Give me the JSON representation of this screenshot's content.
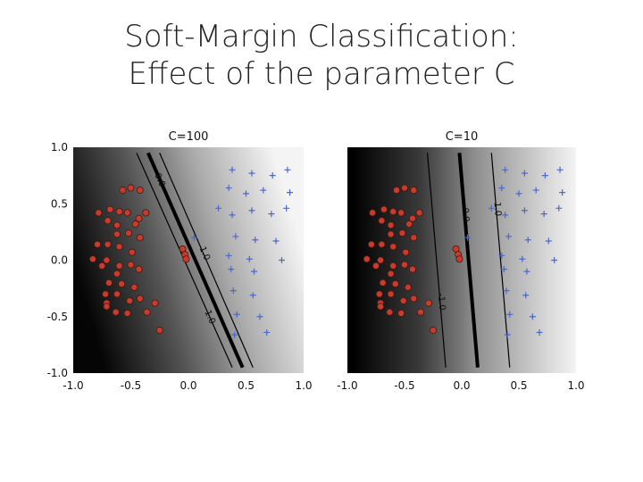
{
  "slide": {
    "title_line1": "Soft-Margin Classification:",
    "title_line2": "Effect of the parameter C"
  },
  "chart_data": [
    {
      "type": "scatter",
      "title": "C=100",
      "xlim": [
        -1.0,
        1.0
      ],
      "ylim": [
        -1.0,
        1.0
      ],
      "xticks": [
        "-1.0",
        "-0.5",
        "0.0",
        "0.5",
        "1.0"
      ],
      "yticks": [
        "1.0",
        "0.5",
        "0.0",
        "-0.5",
        "-1.0"
      ],
      "decision_function_background": "dark-to-light gradient, low values dark (left), high values light (right)",
      "contours": [
        {
          "level": "0.0",
          "points": [
            [
              -0.35,
              0.95
            ],
            [
              0.47,
              -0.95
            ]
          ],
          "weight": "bold"
        },
        {
          "level": "-1.0",
          "label": "-1.0",
          "points": [
            [
              -0.45,
              0.95
            ],
            [
              0.38,
              -0.95
            ]
          ]
        },
        {
          "level": "1.0",
          "label": "1.0",
          "points": [
            [
              -0.25,
              0.95
            ],
            [
              0.56,
              -0.95
            ]
          ]
        }
      ],
      "contour_labels": [
        {
          "text": "0.0",
          "x": -0.27,
          "y": 0.7
        },
        {
          "text": "1.0",
          "x": 0.12,
          "y": 0.05
        },
        {
          "text": "-1.0",
          "x": 0.16,
          "y": -0.5
        }
      ],
      "series": [
        {
          "marker": "circle",
          "color": "#cc3a2c",
          "points": [
            [
              -0.57,
              0.62
            ],
            [
              -0.5,
              0.64
            ],
            [
              -0.42,
              0.62
            ],
            [
              -0.78,
              0.42
            ],
            [
              -0.68,
              0.45
            ],
            [
              -0.6,
              0.43
            ],
            [
              -0.53,
              0.42
            ],
            [
              -0.43,
              0.37
            ],
            [
              -0.7,
              0.35
            ],
            [
              -0.62,
              0.31
            ],
            [
              -0.46,
              0.32
            ],
            [
              -0.37,
              0.42
            ],
            [
              -0.62,
              0.23
            ],
            [
              -0.52,
              0.24
            ],
            [
              -0.42,
              0.2
            ],
            [
              -0.79,
              0.14
            ],
            [
              -0.7,
              0.14
            ],
            [
              -0.6,
              0.12
            ],
            [
              -0.49,
              0.07
            ],
            [
              -0.83,
              0.01
            ],
            [
              -0.71,
              0.0
            ],
            [
              -0.6,
              -0.05
            ],
            [
              -0.5,
              -0.04
            ],
            [
              -0.43,
              -0.08
            ],
            [
              -0.75,
              -0.05
            ],
            [
              -0.62,
              -0.12
            ],
            [
              -0.69,
              -0.2
            ],
            [
              -0.58,
              -0.21
            ],
            [
              -0.47,
              -0.24
            ],
            [
              -0.72,
              -0.3
            ],
            [
              -0.62,
              -0.3
            ],
            [
              -0.51,
              -0.36
            ],
            [
              -0.71,
              -0.38
            ],
            [
              -0.42,
              -0.34
            ],
            [
              -0.29,
              -0.38
            ],
            [
              -0.63,
              -0.46
            ],
            [
              -0.53,
              -0.47
            ],
            [
              -0.36,
              -0.46
            ],
            [
              -0.71,
              -0.41
            ],
            [
              -0.25,
              -0.62
            ],
            [
              -0.05,
              0.1
            ],
            [
              -0.03,
              0.05
            ],
            [
              -0.02,
              0.01
            ]
          ]
        },
        {
          "marker": "plus",
          "color": "#4a68c8",
          "points": [
            [
              0.38,
              0.8
            ],
            [
              0.55,
              0.77
            ],
            [
              0.73,
              0.75
            ],
            [
              0.86,
              0.8
            ],
            [
              0.35,
              0.64
            ],
            [
              0.65,
              0.62
            ],
            [
              0.5,
              0.59
            ],
            [
              0.88,
              0.6
            ],
            [
              0.26,
              0.46
            ],
            [
              0.38,
              0.4
            ],
            [
              0.55,
              0.44
            ],
            [
              0.72,
              0.41
            ],
            [
              0.85,
              0.46
            ],
            [
              0.41,
              0.21
            ],
            [
              0.58,
              0.18
            ],
            [
              0.76,
              0.17
            ],
            [
              0.35,
              0.04
            ],
            [
              0.53,
              0.01
            ],
            [
              0.81,
              0.0
            ],
            [
              0.39,
              -0.27
            ],
            [
              0.56,
              -0.31
            ],
            [
              0.42,
              -0.48
            ],
            [
              0.62,
              -0.5
            ],
            [
              0.68,
              -0.64
            ],
            [
              0.05,
              0.2
            ],
            [
              0.37,
              -0.08
            ],
            [
              0.57,
              -0.1
            ],
            [
              0.4,
              -0.66
            ]
          ]
        }
      ]
    },
    {
      "type": "scatter",
      "title": "C=10",
      "xlim": [
        -1.0,
        1.0
      ],
      "ylim": [
        -1.0,
        1.0
      ],
      "xticks": [
        "-1.0",
        "-0.5",
        "0.0",
        "0.5",
        "1.0"
      ],
      "yticks": [],
      "decision_function_background": "dark-to-light gradient, low values dark (left), high values light (right)",
      "contours": [
        {
          "level": "0.0",
          "points": [
            [
              -0.02,
              0.95
            ],
            [
              0.14,
              -0.95
            ]
          ],
          "weight": "bold"
        },
        {
          "level": "-1.0",
          "label": "-1.0",
          "points": [
            [
              -0.3,
              0.95
            ],
            [
              -0.14,
              -0.95
            ]
          ]
        },
        {
          "level": "1.0",
          "label": "1.0",
          "points": [
            [
              0.26,
              0.95
            ],
            [
              0.42,
              -0.95
            ]
          ]
        }
      ],
      "contour_labels": [
        {
          "text": "0.0",
          "x": 0.01,
          "y": 0.4
        },
        {
          "text": "1.0",
          "x": 0.29,
          "y": 0.45
        },
        {
          "text": "-1.0",
          "x": -0.2,
          "y": -0.37
        }
      ],
      "series": [
        {
          "marker": "circle",
          "color": "#cc3a2c",
          "points": [
            [
              -0.57,
              0.62
            ],
            [
              -0.5,
              0.64
            ],
            [
              -0.42,
              0.62
            ],
            [
              -0.78,
              0.42
            ],
            [
              -0.68,
              0.45
            ],
            [
              -0.6,
              0.43
            ],
            [
              -0.53,
              0.42
            ],
            [
              -0.43,
              0.37
            ],
            [
              -0.7,
              0.35
            ],
            [
              -0.62,
              0.31
            ],
            [
              -0.46,
              0.32
            ],
            [
              -0.37,
              0.42
            ],
            [
              -0.62,
              0.23
            ],
            [
              -0.52,
              0.24
            ],
            [
              -0.42,
              0.2
            ],
            [
              -0.79,
              0.14
            ],
            [
              -0.7,
              0.14
            ],
            [
              -0.6,
              0.12
            ],
            [
              -0.49,
              0.07
            ],
            [
              -0.83,
              0.01
            ],
            [
              -0.71,
              0.0
            ],
            [
              -0.6,
              -0.05
            ],
            [
              -0.5,
              -0.04
            ],
            [
              -0.43,
              -0.08
            ],
            [
              -0.75,
              -0.05
            ],
            [
              -0.62,
              -0.12
            ],
            [
              -0.69,
              -0.2
            ],
            [
              -0.58,
              -0.21
            ],
            [
              -0.47,
              -0.24
            ],
            [
              -0.72,
              -0.3
            ],
            [
              -0.62,
              -0.3
            ],
            [
              -0.51,
              -0.36
            ],
            [
              -0.71,
              -0.38
            ],
            [
              -0.42,
              -0.34
            ],
            [
              -0.29,
              -0.38
            ],
            [
              -0.63,
              -0.46
            ],
            [
              -0.53,
              -0.47
            ],
            [
              -0.36,
              -0.46
            ],
            [
              -0.71,
              -0.41
            ],
            [
              -0.25,
              -0.62
            ],
            [
              -0.05,
              0.1
            ],
            [
              -0.03,
              0.05
            ],
            [
              -0.02,
              0.01
            ]
          ]
        },
        {
          "marker": "plus",
          "color": "#4a68c8",
          "points": [
            [
              0.38,
              0.8
            ],
            [
              0.55,
              0.77
            ],
            [
              0.73,
              0.75
            ],
            [
              0.86,
              0.8
            ],
            [
              0.35,
              0.64
            ],
            [
              0.65,
              0.62
            ],
            [
              0.5,
              0.59
            ],
            [
              0.88,
              0.6
            ],
            [
              0.26,
              0.46
            ],
            [
              0.38,
              0.4
            ],
            [
              0.55,
              0.44
            ],
            [
              0.72,
              0.41
            ],
            [
              0.85,
              0.46
            ],
            [
              0.41,
              0.21
            ],
            [
              0.58,
              0.18
            ],
            [
              0.76,
              0.17
            ],
            [
              0.35,
              0.04
            ],
            [
              0.53,
              0.01
            ],
            [
              0.81,
              0.0
            ],
            [
              0.39,
              -0.27
            ],
            [
              0.56,
              -0.31
            ],
            [
              0.42,
              -0.48
            ],
            [
              0.62,
              -0.5
            ],
            [
              0.68,
              -0.64
            ],
            [
              0.05,
              0.2
            ],
            [
              0.37,
              -0.08
            ],
            [
              0.57,
              -0.1
            ],
            [
              0.4,
              -0.66
            ]
          ]
        }
      ]
    }
  ]
}
